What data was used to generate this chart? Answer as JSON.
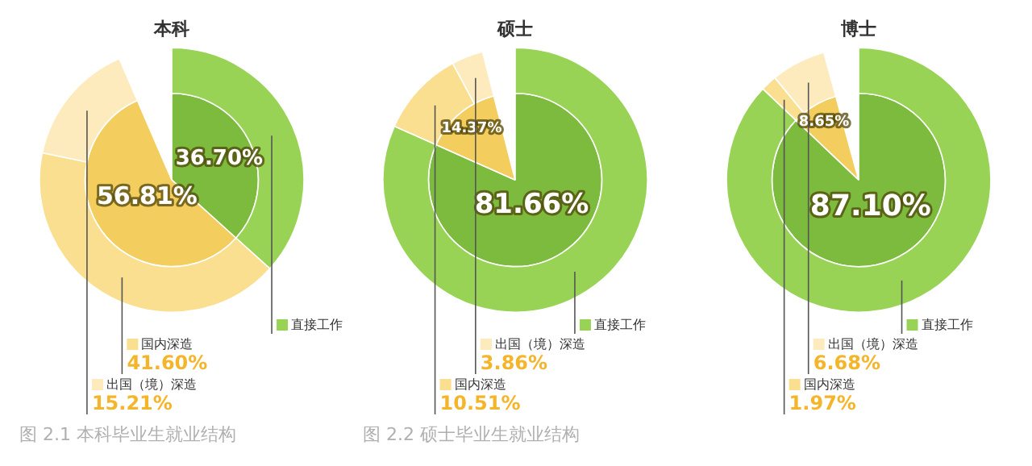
{
  "chart_data": [
    {
      "type": "pie",
      "title": "本科",
      "categories": [
        "直接工作",
        "国内深造",
        "出国（境）深造"
      ],
      "series": [
        {
          "colors": [
            "#7dbb3f",
            "#f3cd5e",
            null
          ],
          "values": [
            36.7,
            56.81,
            null
          ],
          "value_labels": [
            "36.70%",
            "56.81%",
            null
          ]
        },
        {
          "colors": [
            "#98d356",
            "#f9df8f",
            "#fdebbd"
          ],
          "values": [
            36.7,
            41.6,
            15.21
          ],
          "value_labels": [
            null,
            "41.60%",
            "15.21%"
          ]
        }
      ],
      "legend": "bottom",
      "annotations": [
        "图 2.1 本科毕业生就业结构"
      ]
    },
    {
      "type": "pie",
      "title": "硕士",
      "categories": [
        "直接工作",
        "国内深造",
        "出国（境）深造"
      ],
      "series": [
        {
          "colors": [
            "#7dbb3f",
            "#f3cd5e",
            null
          ],
          "values": [
            81.66,
            14.37,
            null
          ],
          "value_labels": [
            "81.66%",
            "14.37%",
            null
          ]
        },
        {
          "colors": [
            "#98d356",
            "#f9df8f",
            "#fdebbd"
          ],
          "values": [
            81.66,
            10.51,
            3.86
          ],
          "value_labels": [
            null,
            "10.51%",
            "3.86%"
          ]
        }
      ],
      "legend": "bottom",
      "annotations": [
        "图 2.2 硕士毕业生就业结构"
      ]
    },
    {
      "type": "pie",
      "title": "博士",
      "categories": [
        "直接工作",
        "国内深造",
        "出国（境）深造"
      ],
      "series": [
        {
          "colors": [
            "#7dbb3f",
            "#f3cd5e",
            null
          ],
          "values": [
            87.1,
            8.65,
            null
          ],
          "value_labels": [
            "87.10%",
            "8.65%",
            null
          ]
        },
        {
          "colors": [
            "#98d356",
            "#f9df8f",
            "#fdebbd"
          ],
          "values": [
            87.1,
            1.97,
            6.68
          ],
          "value_labels": [
            null,
            "1.97%",
            "6.68%"
          ]
        }
      ],
      "legend": "bottom"
    }
  ]
}
